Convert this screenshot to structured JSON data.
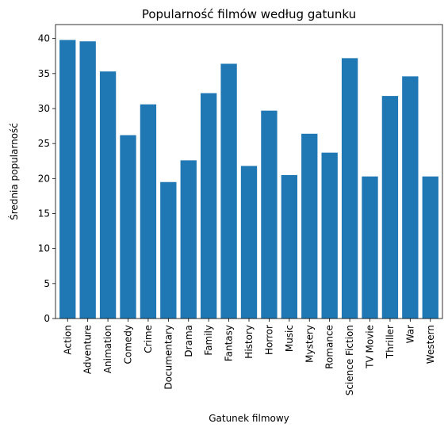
{
  "chart_data": {
    "type": "bar",
    "title": "Popularność filmów według gatunku",
    "xlabel": "Gatunek filmowy",
    "ylabel": "Średnia popularność",
    "categories": [
      "Action",
      "Adventure",
      "Animation",
      "Comedy",
      "Crime",
      "Documentary",
      "Drama",
      "Family",
      "Fantasy",
      "History",
      "Horror",
      "Music",
      "Mystery",
      "Romance",
      "Science Fiction",
      "TV Movie",
      "Thriller",
      "War",
      "Western"
    ],
    "values": [
      39.8,
      39.6,
      35.3,
      26.2,
      30.6,
      19.5,
      22.6,
      32.2,
      36.4,
      21.8,
      29.7,
      20.5,
      26.4,
      23.7,
      37.2,
      20.3,
      31.8,
      34.6,
      20.3
    ],
    "ylim": [
      0,
      42
    ],
    "yticks": [
      0,
      5,
      10,
      15,
      20,
      25,
      30,
      35,
      40
    ],
    "color": "#1f77b4",
    "grid": false,
    "legend": "none"
  }
}
